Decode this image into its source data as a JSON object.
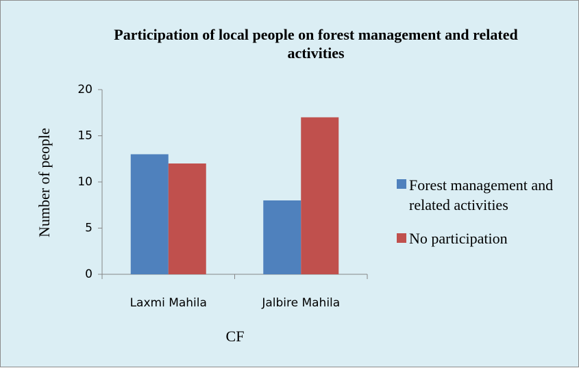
{
  "chart_data": {
    "type": "bar",
    "title": "Participation of local people on forest management and related activities",
    "categories": [
      "Laxmi Mahila",
      "Jalbire Mahila"
    ],
    "series": [
      {
        "name": "Forest management and related activities",
        "color": "#4f81bd",
        "values": [
          13,
          8
        ]
      },
      {
        "name": "No participation",
        "color": "#c0504d",
        "values": [
          12,
          17
        ]
      }
    ],
    "x_label": "CF",
    "y_label": "Number of people",
    "ylim": [
      0,
      20
    ],
    "yticks": [
      0,
      5,
      10,
      15,
      20
    ],
    "grid": false,
    "legend": "right"
  }
}
